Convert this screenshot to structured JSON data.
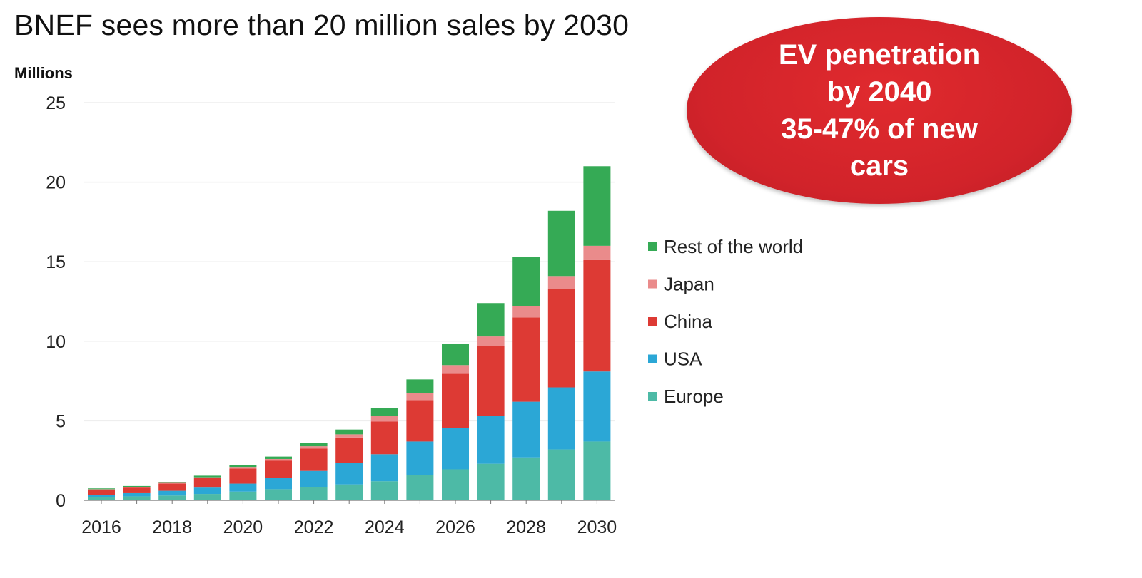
{
  "header": {
    "title": "BNEF sees more than 20 million sales by 2030"
  },
  "callout": {
    "lines": [
      "EV penetration",
      "by 2040",
      "35-47% of new",
      "cars"
    ],
    "color": "#d2232a"
  },
  "chart_data": {
    "type": "bar",
    "stacked": true,
    "title": "BNEF sees more than 20 million sales by 2030",
    "ylabel": "Millions",
    "xlabel": "",
    "ylim": [
      0,
      25
    ],
    "yticks": [
      0,
      5,
      10,
      15,
      20,
      25
    ],
    "xtick_labels": [
      "2016",
      "2018",
      "2020",
      "2022",
      "2024",
      "2026",
      "2028",
      "2030"
    ],
    "grid": true,
    "legend_placement": "right",
    "categories": [
      "2016",
      "2017",
      "2018",
      "2019",
      "2020",
      "2021",
      "2022",
      "2023",
      "2024",
      "2025",
      "2026",
      "2027",
      "2028",
      "2029",
      "2030"
    ],
    "series": [
      {
        "name": "Europe",
        "color": "#4dbaa6",
        "values": [
          0.2,
          0.25,
          0.3,
          0.4,
          0.55,
          0.7,
          0.85,
          1.0,
          1.2,
          1.6,
          1.95,
          2.3,
          2.7,
          3.2,
          3.7
        ]
      },
      {
        "name": "USA",
        "color": "#2ba7d6",
        "values": [
          0.15,
          0.2,
          0.3,
          0.4,
          0.5,
          0.7,
          1.0,
          1.35,
          1.7,
          2.1,
          2.6,
          3.0,
          3.5,
          3.9,
          4.4
        ]
      },
      {
        "name": "China",
        "color": "#dd3a34",
        "values": [
          0.3,
          0.35,
          0.45,
          0.6,
          0.95,
          1.1,
          1.4,
          1.6,
          2.05,
          2.6,
          3.4,
          4.4,
          5.3,
          6.2,
          7.0
        ]
      },
      {
        "name": "Japan",
        "color": "#ea8b8b",
        "values": [
          0.05,
          0.05,
          0.05,
          0.05,
          0.1,
          0.1,
          0.15,
          0.2,
          0.35,
          0.45,
          0.55,
          0.6,
          0.7,
          0.8,
          0.9
        ]
      },
      {
        "name": "Rest of the world",
        "color": "#35aa55",
        "values": [
          0.05,
          0.05,
          0.05,
          0.1,
          0.1,
          0.15,
          0.2,
          0.3,
          0.5,
          0.85,
          1.35,
          2.1,
          3.1,
          4.1,
          5.0
        ]
      }
    ]
  }
}
